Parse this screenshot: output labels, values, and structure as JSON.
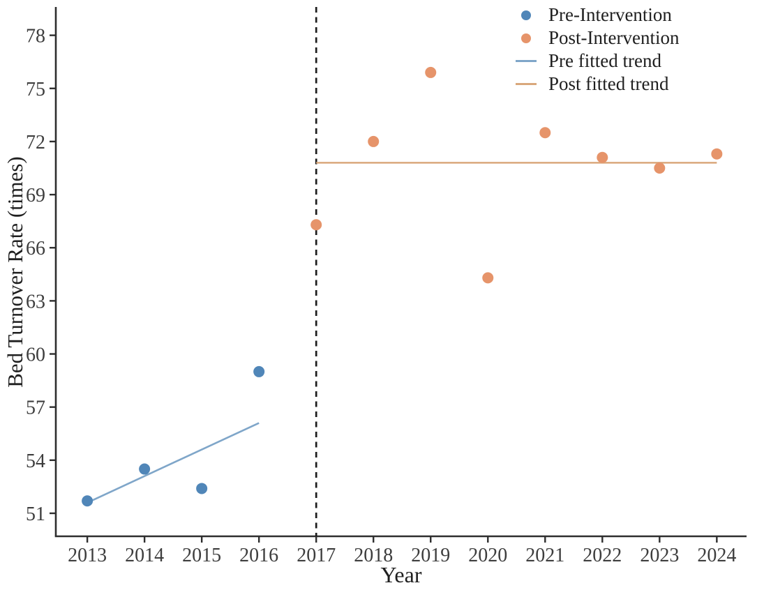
{
  "chart_data": {
    "type": "scatter",
    "title": "",
    "xlabel": "Year",
    "ylabel": "Bed Turnover Rate (times)",
    "xlim": [
      2012.45,
      2024.52
    ],
    "ylim": [
      49.7,
      79.6
    ],
    "x_ticks": [
      2013,
      2014,
      2015,
      2016,
      2017,
      2018,
      2019,
      2020,
      2021,
      2022,
      2023,
      2024
    ],
    "y_ticks": [
      51,
      54,
      57,
      60,
      63,
      66,
      69,
      72,
      75,
      78
    ],
    "grid": false,
    "intervention_line": {
      "x": 2017,
      "style": "dashed",
      "color": "#1c1c1c"
    },
    "series": [
      {
        "name": "Pre-Intervention",
        "type": "scatter",
        "color": "#5086B8",
        "x": [
          2013,
          2014,
          2015,
          2016
        ],
        "y": [
          51.7,
          53.5,
          52.4,
          59.0
        ]
      },
      {
        "name": "Post-Intervention",
        "type": "scatter",
        "color": "#E6946A",
        "x": [
          2017,
          2018,
          2019,
          2020,
          2021,
          2022,
          2023,
          2024
        ],
        "y": [
          67.3,
          72.0,
          75.9,
          64.3,
          72.5,
          71.1,
          70.5,
          71.3
        ]
      },
      {
        "name": "Pre fitted trend",
        "type": "line",
        "color": "#7FA6C9",
        "x": [
          2013,
          2016
        ],
        "y": [
          51.6,
          56.1
        ]
      },
      {
        "name": "Post fitted trend",
        "type": "line",
        "color": "#D9A87C",
        "x": [
          2017,
          2024
        ],
        "y": [
          70.8,
          70.8
        ]
      }
    ],
    "legend": {
      "position": "top-right",
      "items": [
        {
          "label": "Pre-Intervention",
          "marker": "dot",
          "color": "#5086B8"
        },
        {
          "label": "Post-Intervention",
          "marker": "dot",
          "color": "#E6946A"
        },
        {
          "label": "Pre fitted trend",
          "marker": "line",
          "color": "#7FA6C9"
        },
        {
          "label": "Post fitted trend",
          "marker": "line",
          "color": "#D9A87C"
        }
      ]
    },
    "axis_color": "#2e2e2e",
    "tick_label_color": "#3d3d3d",
    "text_color": "#1f1f1f"
  }
}
